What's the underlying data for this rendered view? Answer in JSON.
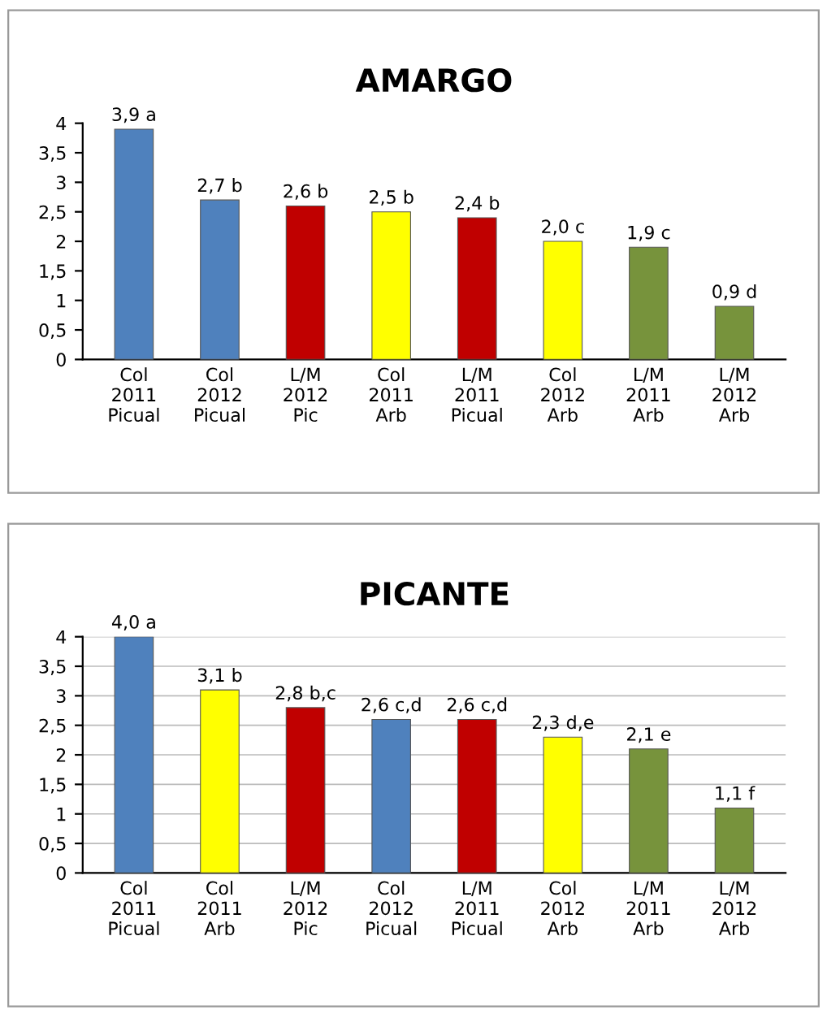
{
  "chart_data": [
    {
      "type": "bar",
      "title": "AMARGO",
      "categories": [
        "Col\n2011\nPicual",
        "Col\n2012\nPicual",
        "L/M\n2012\nPic",
        "Col\n2011\nArb",
        "L/M\n2011\nPicual",
        "Col\n2012\nArb",
        "L/M\n2011\nArb",
        "L/M\n2012\nArb"
      ],
      "values": [
        3.9,
        2.7,
        2.6,
        2.5,
        2.4,
        2.0,
        1.9,
        0.9
      ],
      "colors": [
        "#4f81bd",
        "#4f81bd",
        "#c00000",
        "#ffff00",
        "#c00000",
        "#ffff00",
        "#77933c",
        "#77933c"
      ],
      "value_labels": [
        "3,9 a",
        "2,7 b",
        "2,6 b",
        "2,5 b",
        "2,4 b",
        "2,0 c",
        "1,9 c",
        "0,9 d"
      ],
      "ylim": [
        0,
        4
      ],
      "yticks": [
        0,
        {
          "value": 0.5,
          "label": "0,5"
        },
        1,
        {
          "value": 1.5,
          "label": "1,5"
        },
        2,
        {
          "value": 2.5,
          "label": "2,5"
        },
        3,
        {
          "value": 3.5,
          "label": "3,5"
        },
        4
      ],
      "grid": false
    },
    {
      "type": "bar",
      "title": "PICANTE",
      "categories": [
        "Col\n2011\nPicual",
        "Col\n2011\nArb",
        "L/M\n2012\nPic",
        "Col\n2012\nPicual",
        "L/M\n2011\nPicual",
        "Col\n2012\nArb",
        "L/M\n2011\nArb",
        "L/M\n2012\nArb"
      ],
      "values": [
        4.0,
        3.1,
        2.8,
        2.6,
        2.6,
        2.3,
        2.1,
        1.1
      ],
      "colors": [
        "#4f81bd",
        "#ffff00",
        "#c00000",
        "#4f81bd",
        "#c00000",
        "#ffff00",
        "#77933c",
        "#77933c"
      ],
      "value_labels": [
        "4,0 a",
        "3,1 b",
        "2,8 b,c",
        "2,6 c,d",
        "2,6 c,d",
        "2,3 d,e",
        "2,1 e",
        "1,1 f"
      ],
      "ylim": [
        0,
        4
      ],
      "yticks": [
        0,
        {
          "value": 0.5,
          "label": "0,5"
        },
        1,
        {
          "value": 1.5,
          "label": "1,5"
        },
        2,
        {
          "value": 2.5,
          "label": "2,5"
        },
        3,
        {
          "value": 3.5,
          "label": "3,5"
        },
        4
      ],
      "grid": "y"
    }
  ]
}
